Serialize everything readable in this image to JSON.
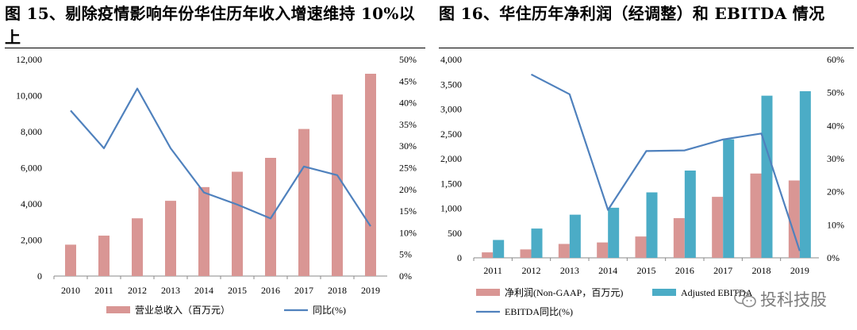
{
  "titles": {
    "left": "图 15、剔除疫情影响年份华住历年收入增速维持 10%以上",
    "right": "图 16、华住历年净利润（经调整）和 EBITDA 情况"
  },
  "watermark": "投科技股",
  "chart_data": [
    {
      "type": "bar",
      "categories": [
        "2010",
        "2011",
        "2012",
        "2013",
        "2014",
        "2015",
        "2016",
        "2017",
        "2018",
        "2019"
      ],
      "series": [
        {
          "name": "营业总收入（百万元）",
          "kind": "bar",
          "axis": "left",
          "color": "#d99694",
          "values": [
            1740,
            2240,
            3200,
            4170,
            4930,
            5780,
            6550,
            8150,
            10060,
            11210
          ]
        },
        {
          "name": "同比(%)",
          "kind": "line",
          "axis": "right",
          "color": "#4f81bd",
          "values": [
            38.2,
            29.5,
            43.3,
            29.5,
            19.3,
            16.5,
            13.3,
            25.3,
            23.3,
            11.5
          ]
        }
      ],
      "left_axis": {
        "min": 0,
        "max": 12000,
        "step": 2000,
        "ticks": [
          "0",
          "2,000",
          "4,000",
          "6,000",
          "8,000",
          "10,000",
          "12,000"
        ]
      },
      "right_axis": {
        "min": 0,
        "max": 50,
        "step": 5,
        "ticks": [
          "0%",
          "5%",
          "10%",
          "15%",
          "20%",
          "25%",
          "30%",
          "35%",
          "40%",
          "45%",
          "50%"
        ]
      },
      "legend": {
        "position": "bottom",
        "items": [
          {
            "label": "营业总收入（百万元）",
            "kind": "bar",
            "color": "#d99694"
          },
          {
            "label": "同比(%)",
            "kind": "line",
            "color": "#4f81bd"
          }
        ]
      }
    },
    {
      "type": "bar",
      "categories": [
        "2011",
        "2012",
        "2013",
        "2014",
        "2015",
        "2016",
        "2017",
        "2018",
        "2019"
      ],
      "series": [
        {
          "name": "净利润(Non-GAAP，百万元)",
          "kind": "bar",
          "axis": "left",
          "color": "#d99694",
          "values": [
            110,
            170,
            280,
            310,
            430,
            800,
            1230,
            1700,
            1560
          ]
        },
        {
          "name": "Adjusted EBITDA",
          "kind": "bar",
          "axis": "left",
          "color": "#4bacc6",
          "values": [
            360,
            590,
            870,
            1010,
            1320,
            1760,
            2390,
            3270,
            3360
          ]
        },
        {
          "name": "EBITDA同比(%)",
          "kind": "line",
          "axis": "right",
          "color": "#4f81bd",
          "values": [
            null,
            55.5,
            49.5,
            14.5,
            32.3,
            32.5,
            35.8,
            37.6,
            2.1
          ]
        }
      ],
      "left_axis": {
        "min": 0,
        "max": 4000,
        "step": 500,
        "ticks": [
          "0",
          "500",
          "1,000",
          "1,500",
          "2,000",
          "2,500",
          "3,000",
          "3,500",
          "4,000"
        ]
      },
      "right_axis": {
        "min": 0,
        "max": 60,
        "step": 10,
        "ticks": [
          "0%",
          "10%",
          "20%",
          "30%",
          "40%",
          "50%",
          "60%"
        ]
      },
      "legend": {
        "position": "bottom",
        "items": [
          {
            "label": "净利润(Non-GAAP，百万元)",
            "kind": "bar",
            "color": "#d99694"
          },
          {
            "label": "Adjusted EBITDA",
            "kind": "bar",
            "color": "#4bacc6"
          },
          {
            "label": "EBITDA同比(%)",
            "kind": "line",
            "color": "#4f81bd"
          }
        ]
      }
    }
  ]
}
